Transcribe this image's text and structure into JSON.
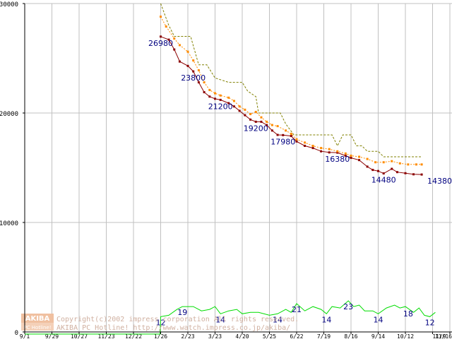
{
  "chart_data": {
    "type": "line",
    "title": "",
    "xlabel": "",
    "ylabel": "",
    "ylim": [
      0,
      30000
    ],
    "y_ticks": [
      "0",
      "10000",
      "20000",
      "30000"
    ],
    "x_ticks": [
      "9/1",
      "9/29",
      "10/27",
      "11/23",
      "12/22",
      "1/26",
      "2/23",
      "3/23",
      "4/20",
      "5/25",
      "6/22",
      "7/19",
      "8/16",
      "9/14",
      "10/12",
      "11/9",
      "11/16"
    ],
    "grid": true,
    "series": [
      {
        "name": "",
        "color": "#8b0000",
        "style": "solid-dots",
        "points": [
          [
            5.0,
            26980
          ],
          [
            5.3,
            26700
          ],
          [
            5.5,
            25800
          ],
          [
            5.7,
            24700
          ],
          [
            6.0,
            24300
          ],
          [
            6.2,
            23800
          ],
          [
            6.4,
            22800
          ],
          [
            6.6,
            21900
          ],
          [
            6.8,
            21500
          ],
          [
            7.0,
            21300
          ],
          [
            7.2,
            21200
          ],
          [
            7.5,
            20900
          ],
          [
            7.7,
            20600
          ],
          [
            7.9,
            20200
          ],
          [
            8.1,
            19800
          ],
          [
            8.3,
            19400
          ],
          [
            8.5,
            19200
          ],
          [
            8.7,
            19200
          ],
          [
            8.9,
            18900
          ],
          [
            9.1,
            18400
          ],
          [
            9.3,
            18000
          ],
          [
            9.5,
            17980
          ],
          [
            9.8,
            17900
          ],
          [
            10.0,
            17400
          ],
          [
            10.3,
            17000
          ],
          [
            10.6,
            16800
          ],
          [
            10.9,
            16500
          ],
          [
            11.2,
            16400
          ],
          [
            11.5,
            16380
          ],
          [
            11.8,
            16100
          ],
          [
            12.0,
            15900
          ],
          [
            12.3,
            15700
          ],
          [
            12.6,
            15100
          ],
          [
            12.8,
            14800
          ],
          [
            13.0,
            14700
          ],
          [
            13.2,
            14480
          ],
          [
            13.5,
            14900
          ],
          [
            13.7,
            14600
          ],
          [
            14.0,
            14500
          ],
          [
            14.3,
            14400
          ],
          [
            14.6,
            14380
          ]
        ]
      },
      {
        "name": "",
        "color": "#ff8c00",
        "style": "dotted-dots",
        "points": [
          [
            5.0,
            28800
          ],
          [
            5.2,
            27900
          ],
          [
            5.5,
            26800
          ],
          [
            5.7,
            26200
          ],
          [
            6.0,
            25600
          ],
          [
            6.2,
            24800
          ],
          [
            6.4,
            23900
          ],
          [
            6.6,
            22800
          ],
          [
            6.8,
            22100
          ],
          [
            7.0,
            21800
          ],
          [
            7.2,
            21600
          ],
          [
            7.5,
            21400
          ],
          [
            7.7,
            21100
          ],
          [
            7.9,
            20600
          ],
          [
            8.1,
            20300
          ],
          [
            8.3,
            19900
          ],
          [
            8.5,
            20100
          ],
          [
            8.7,
            19600
          ],
          [
            8.9,
            19200
          ],
          [
            9.1,
            18900
          ],
          [
            9.3,
            18800
          ],
          [
            9.6,
            18400
          ],
          [
            9.8,
            18100
          ],
          [
            10.0,
            17600
          ],
          [
            10.3,
            17300
          ],
          [
            10.6,
            17000
          ],
          [
            10.9,
            16800
          ],
          [
            11.2,
            16700
          ],
          [
            11.5,
            16500
          ],
          [
            11.8,
            16300
          ],
          [
            12.0,
            16100
          ],
          [
            12.3,
            16000
          ],
          [
            12.6,
            15800
          ],
          [
            12.9,
            15500
          ],
          [
            13.2,
            15500
          ],
          [
            13.5,
            15600
          ],
          [
            13.8,
            15400
          ],
          [
            14.1,
            15300
          ],
          [
            14.4,
            15300
          ],
          [
            14.6,
            15300
          ]
        ]
      },
      {
        "name": "",
        "color": "#808000",
        "style": "dashed",
        "points": [
          [
            5.0,
            30000
          ],
          [
            5.3,
            28000
          ],
          [
            5.5,
            27000
          ],
          [
            6.1,
            27000
          ],
          [
            6.4,
            24400
          ],
          [
            6.7,
            24400
          ],
          [
            7.0,
            23200
          ],
          [
            7.5,
            22800
          ],
          [
            8.0,
            22800
          ],
          [
            8.2,
            22000
          ],
          [
            8.5,
            21500
          ],
          [
            8.6,
            20000
          ],
          [
            9.4,
            20000
          ],
          [
            9.6,
            19000
          ],
          [
            9.9,
            18000
          ],
          [
            10.3,
            18000
          ],
          [
            11.3,
            18000
          ],
          [
            11.5,
            17000
          ],
          [
            11.7,
            18000
          ],
          [
            12.0,
            18000
          ],
          [
            12.2,
            17000
          ],
          [
            12.4,
            17000
          ],
          [
            12.6,
            16500
          ],
          [
            13.0,
            16500
          ],
          [
            13.2,
            16000
          ],
          [
            14.6,
            16000
          ]
        ]
      },
      {
        "name": "",
        "color": "#00dd00",
        "style": "solid",
        "scale": "count",
        "points": [
          [
            0,
            0
          ],
          [
            4.98,
            0
          ],
          [
            5.0,
            12
          ],
          [
            5.3,
            13
          ],
          [
            5.6,
            17
          ],
          [
            5.8,
            19
          ],
          [
            6.2,
            19
          ],
          [
            6.5,
            16
          ],
          [
            6.8,
            17
          ],
          [
            7.0,
            19
          ],
          [
            7.2,
            14
          ],
          [
            7.5,
            16
          ],
          [
            7.8,
            17
          ],
          [
            8.0,
            14
          ],
          [
            8.3,
            15
          ],
          [
            8.6,
            15
          ],
          [
            9.0,
            13
          ],
          [
            9.3,
            14
          ],
          [
            9.6,
            17
          ],
          [
            9.8,
            15
          ],
          [
            10.0,
            21
          ],
          [
            10.3,
            16
          ],
          [
            10.6,
            19
          ],
          [
            10.9,
            17
          ],
          [
            11.1,
            14
          ],
          [
            11.3,
            19
          ],
          [
            11.6,
            18
          ],
          [
            11.9,
            23
          ],
          [
            12.1,
            19
          ],
          [
            12.3,
            20
          ],
          [
            12.5,
            16
          ],
          [
            12.8,
            16
          ],
          [
            13.0,
            14
          ],
          [
            13.3,
            18
          ],
          [
            13.6,
            20
          ],
          [
            13.8,
            18
          ],
          [
            14.0,
            19
          ],
          [
            14.3,
            15
          ],
          [
            14.5,
            18
          ],
          [
            14.7,
            13
          ],
          [
            14.9,
            12
          ],
          [
            15.1,
            15
          ]
        ]
      }
    ],
    "annotations": [
      {
        "text": "26980",
        "x": 5.0,
        "y": 26980
      },
      {
        "text": "23800",
        "x": 6.2,
        "y": 23800
      },
      {
        "text": "21200",
        "x": 7.2,
        "y": 21200
      },
      {
        "text": "19200",
        "x": 8.5,
        "y": 19200
      },
      {
        "text": "17980",
        "x": 9.5,
        "y": 17980
      },
      {
        "text": "16380",
        "x": 11.5,
        "y": 16380
      },
      {
        "text": "14480",
        "x": 13.2,
        "y": 14480
      },
      {
        "text": "14380",
        "x": 14.6,
        "y": 14380
      },
      {
        "text": "12",
        "x": 5.0,
        "y": 12,
        "scale": "count"
      },
      {
        "text": "19",
        "x": 5.8,
        "y": 19,
        "scale": "count"
      },
      {
        "text": "14",
        "x": 7.2,
        "y": 14,
        "scale": "count"
      },
      {
        "text": "14",
        "x": 9.3,
        "y": 14,
        "scale": "count"
      },
      {
        "text": "21",
        "x": 10.0,
        "y": 21,
        "scale": "count"
      },
      {
        "text": "14",
        "x": 11.1,
        "y": 14,
        "scale": "count"
      },
      {
        "text": "23",
        "x": 11.9,
        "y": 23,
        "scale": "count"
      },
      {
        "text": "14",
        "x": 13.0,
        "y": 14,
        "scale": "count"
      },
      {
        "text": "18",
        "x": 14.1,
        "y": 18,
        "scale": "count"
      },
      {
        "text": "12",
        "x": 14.9,
        "y": 12,
        "scale": "count"
      }
    ]
  },
  "footer": {
    "logo_top": "AKIBA",
    "logo_bottom": "PC Hotline!",
    "copyright": "Copyright(c)2002 impress corporation All rights reserved.",
    "site": "AKIBA PC Hotline!  http://www.watch.impress.co.jp/akiba/"
  },
  "colors": {
    "grid": "#c0c0c0",
    "axis": "#000000",
    "annotation_text": "#000080",
    "footer_text": "#d0b0a0",
    "logo_bg": "#f0c0a0"
  }
}
